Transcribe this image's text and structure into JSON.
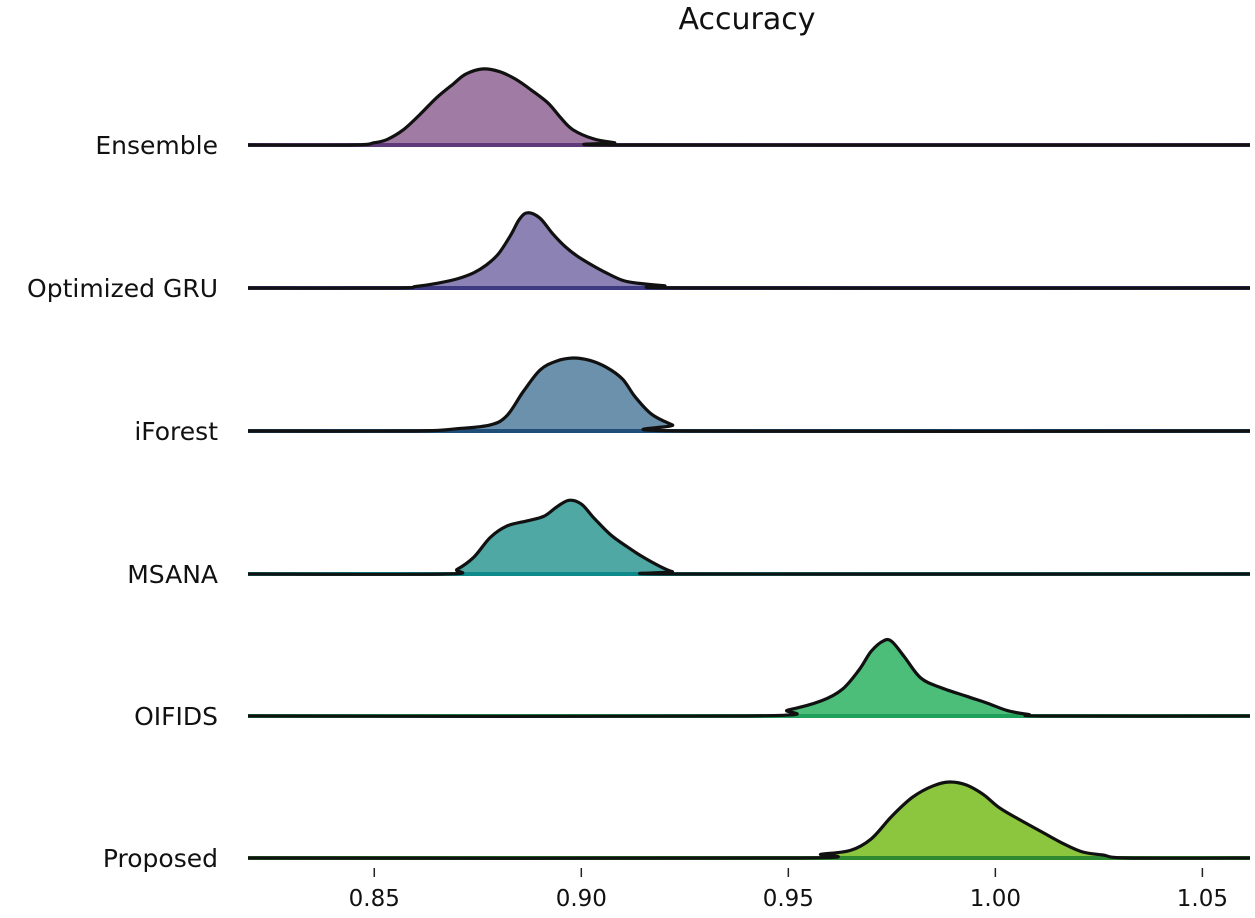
{
  "chart_data": {
    "type": "ridgeline",
    "title": "Accuracy",
    "xlabel": "",
    "ylabel": "",
    "xlim": [
      0.8195,
      1.0615
    ],
    "xticks": [
      "0.85",
      "0.90",
      "0.95",
      "1.00",
      "1.05"
    ],
    "grid": false,
    "legend": "none",
    "series": [
      {
        "name": "Ensemble",
        "color": "#a07ba3",
        "baseline_color": "#5e3a78",
        "x": [
          0.8195,
          0.845,
          0.85,
          0.853,
          0.857,
          0.861,
          0.865,
          0.869,
          0.872,
          0.876,
          0.88,
          0.884,
          0.888,
          0.892,
          0.895,
          0.898,
          0.903,
          0.908,
          0.913,
          1.0615
        ],
        "y": [
          0,
          0,
          0.03,
          0.07,
          0.2,
          0.4,
          0.62,
          0.8,
          0.93,
          1.0,
          0.97,
          0.87,
          0.72,
          0.55,
          0.36,
          0.2,
          0.08,
          0.03,
          0,
          0
        ]
      },
      {
        "name": "Optimized GRU",
        "color": "#8c83b4",
        "baseline_color": "#3d3a82",
        "x": [
          0.8195,
          0.855,
          0.86,
          0.865,
          0.87,
          0.874,
          0.877,
          0.88,
          0.883,
          0.885,
          0.887,
          0.89,
          0.893,
          0.896,
          0.899,
          0.902,
          0.906,
          0.91,
          0.914,
          0.92,
          0.928,
          1.0615
        ],
        "y": [
          0,
          0,
          0.02,
          0.06,
          0.12,
          0.2,
          0.3,
          0.45,
          0.7,
          0.9,
          0.99,
          0.92,
          0.72,
          0.55,
          0.42,
          0.32,
          0.2,
          0.1,
          0.06,
          0.03,
          0,
          0
        ]
      },
      {
        "name": "iForest",
        "color": "#6b91ad",
        "baseline_color": "#1f4e78",
        "x": [
          0.8195,
          0.86,
          0.87,
          0.878,
          0.882,
          0.886,
          0.89,
          0.894,
          0.898,
          0.902,
          0.906,
          0.91,
          0.913,
          0.917,
          0.922,
          0.926,
          1.0615
        ],
        "y": [
          0,
          0,
          0.03,
          0.08,
          0.2,
          0.52,
          0.8,
          0.92,
          0.96,
          0.93,
          0.84,
          0.68,
          0.45,
          0.22,
          0.08,
          0,
          0
        ]
      },
      {
        "name": "MSANA",
        "color": "#4fa8a4",
        "baseline_color": "#0f8a8a",
        "x": [
          0.8195,
          0.867,
          0.87,
          0.874,
          0.878,
          0.882,
          0.887,
          0.891,
          0.894,
          0.897,
          0.9,
          0.903,
          0.907,
          0.911,
          0.915,
          0.919,
          0.922,
          0.925,
          1.0615
        ],
        "y": [
          0,
          0,
          0.06,
          0.22,
          0.48,
          0.63,
          0.7,
          0.76,
          0.88,
          0.97,
          0.92,
          0.74,
          0.52,
          0.36,
          0.22,
          0.1,
          0.03,
          0,
          0
        ]
      },
      {
        "name": "OIFIDS",
        "color": "#4dbd7a",
        "baseline_color": "#1fa05a",
        "x": [
          0.8195,
          0.94,
          0.95,
          0.958,
          0.963,
          0.967,
          0.97,
          0.973,
          0.975,
          0.978,
          0.982,
          0.987,
          0.993,
          0.998,
          1.003,
          1.008,
          1.012,
          1.0615
        ],
        "y": [
          0,
          0,
          0.08,
          0.2,
          0.35,
          0.6,
          0.85,
          0.99,
          0.98,
          0.78,
          0.5,
          0.37,
          0.26,
          0.17,
          0.07,
          0.02,
          0,
          0
        ]
      },
      {
        "name": "Proposed",
        "color": "#8cc63f",
        "baseline_color": "#2f8a2f",
        "x": [
          0.8195,
          0.95,
          0.958,
          0.965,
          0.97,
          0.975,
          0.98,
          0.985,
          0.989,
          0.993,
          0.997,
          1.001,
          1.006,
          1.011,
          1.016,
          1.021,
          1.026,
          1.032,
          1.0615
        ],
        "y": [
          0,
          0,
          0.05,
          0.1,
          0.25,
          0.55,
          0.8,
          0.95,
          1.0,
          0.96,
          0.84,
          0.66,
          0.5,
          0.35,
          0.2,
          0.08,
          0.04,
          0,
          0
        ]
      }
    ]
  }
}
